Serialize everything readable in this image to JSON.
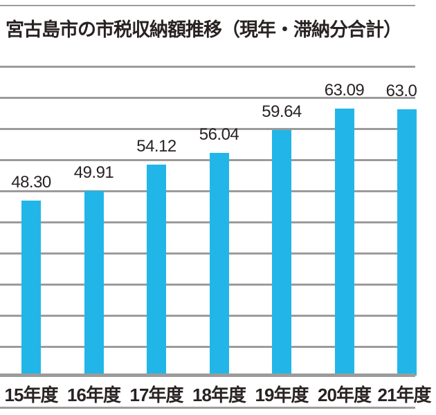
{
  "title": "宮古島市の市税収納額推移（現年・滞納分合計）",
  "chart_data": {
    "type": "bar",
    "title": "宮古島市の市税収納額推移（現年・滞納分合計）",
    "categories": [
      "15年度",
      "16年度",
      "17年度",
      "18年度",
      "19年度",
      "20年度",
      "21年度"
    ],
    "values": [
      48.3,
      49.91,
      54.12,
      56.04,
      59.64,
      63.09,
      63.0
    ],
    "value_labels": [
      "48.30",
      "49.91",
      "54.12",
      "56.04",
      "59.64",
      "63.09",
      "63.0"
    ],
    "xlabel": "",
    "ylabel": "",
    "ylim": [
      20,
      70
    ],
    "gridline_step": 5,
    "grid": true,
    "legend": false,
    "bar_color": "#22b6e8"
  },
  "colors": {
    "bar": "#22b6e8",
    "gridline": "#9b9b9b",
    "text": "#292222",
    "background": "#ffffff"
  }
}
